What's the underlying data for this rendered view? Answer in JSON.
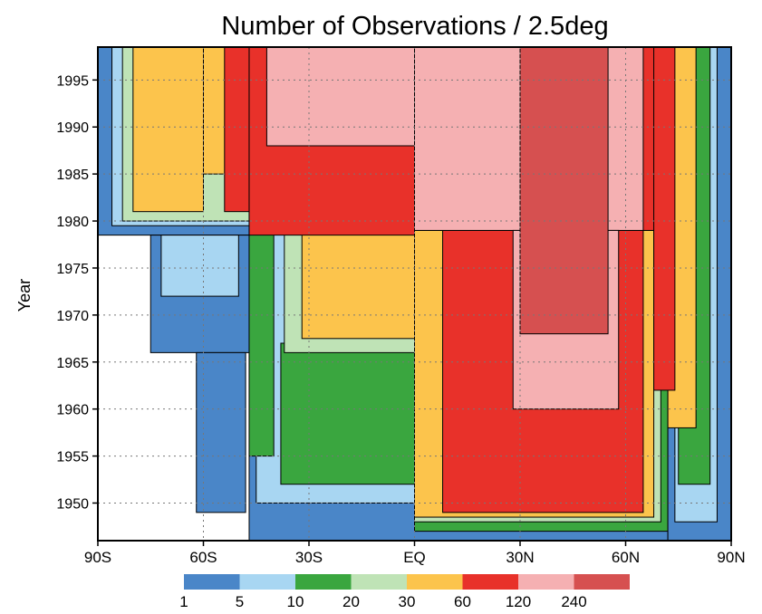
{
  "chart_data": {
    "type": "heatmap",
    "title": "Number of Observations / 2.5deg",
    "xlabel": "",
    "ylabel": "Year",
    "xlim": [
      -90,
      90
    ],
    "ylim": [
      1946,
      1998.5
    ],
    "grid": true,
    "x_ticks": [
      {
        "value": -90,
        "label": "90S"
      },
      {
        "value": -60,
        "label": "60S"
      },
      {
        "value": -30,
        "label": "30S"
      },
      {
        "value": 0,
        "label": "EQ"
      },
      {
        "value": 30,
        "label": "30N"
      },
      {
        "value": 60,
        "label": "60N"
      },
      {
        "value": 90,
        "label": "90N"
      }
    ],
    "y_ticks": [
      {
        "value": 1950,
        "label": "1950"
      },
      {
        "value": 1955,
        "label": "1955"
      },
      {
        "value": 1960,
        "label": "1960"
      },
      {
        "value": 1965,
        "label": "1965"
      },
      {
        "value": 1970,
        "label": "1970"
      },
      {
        "value": 1975,
        "label": "1975"
      },
      {
        "value": 1980,
        "label": "1980"
      },
      {
        "value": 1985,
        "label": "1985"
      },
      {
        "value": 1990,
        "label": "1990"
      },
      {
        "value": 1995,
        "label": "1995"
      }
    ],
    "colorbar": {
      "boundaries": [
        1,
        5,
        10,
        20,
        30,
        60,
        120,
        240
      ],
      "labels": [
        "1",
        "5",
        "10",
        "20",
        "30",
        "60",
        "120",
        "240"
      ],
      "colors": [
        "#4a86c8",
        "#a8d6f2",
        "#3aa63f",
        "#bfe3b6",
        "#fcc44c",
        "#e8312a",
        "#f5b0b2",
        "#d65050"
      ]
    },
    "regions": [
      {
        "level": 1,
        "x0": -90,
        "x1": -47,
        "y0": 1978.5,
        "y1": 1998.5
      },
      {
        "level": 2,
        "x0": -86,
        "x1": -47,
        "y0": 1979.5,
        "y1": 1998.5
      },
      {
        "level": 4,
        "x0": -83,
        "x1": -47,
        "y0": 1980,
        "y1": 1998.5
      },
      {
        "level": 5,
        "x0": -80,
        "x1": -60,
        "y0": 1981,
        "y1": 1998.5
      },
      {
        "level": 5,
        "x0": -60,
        "x1": -50,
        "y0": 1985,
        "y1": 1998.5
      },
      {
        "level": 6,
        "x0": -54,
        "x1": -47,
        "y0": 1981,
        "y1": 1998.5
      },
      {
        "level": 1,
        "x0": -75,
        "x1": -47,
        "y0": 1966,
        "y1": 1978.5
      },
      {
        "level": 2,
        "x0": -72,
        "x1": -50,
        "y0": 1972,
        "y1": 1978.5
      },
      {
        "level": 1,
        "x0": -62,
        "x1": -48,
        "y0": 1949,
        "y1": 1966
      },
      {
        "level": 1,
        "x0": -47,
        "x1": 72,
        "y0": 1946,
        "y1": 1998.5
      },
      {
        "level": 2,
        "x0": -45,
        "x1": 0,
        "y0": 1950,
        "y1": 1979
      },
      {
        "level": 3,
        "x0": -47,
        "x1": -40,
        "y0": 1955,
        "y1": 1979
      },
      {
        "level": 3,
        "x0": -38,
        "x1": 0,
        "y0": 1952,
        "y1": 1967
      },
      {
        "level": 4,
        "x0": -37,
        "x1": 0,
        "y0": 1966,
        "y1": 1979
      },
      {
        "level": 5,
        "x0": -32,
        "x1": 0,
        "y0": 1967.5,
        "y1": 1979
      },
      {
        "level": 6,
        "x0": -47,
        "x1": 0,
        "y0": 1978.5,
        "y1": 1998.5
      },
      {
        "level": 7,
        "x0": -42,
        "x1": 0,
        "y0": 1988,
        "y1": 1998.5
      },
      {
        "level": 3,
        "x0": 0,
        "x1": 72,
        "y0": 1947,
        "y1": 1979
      },
      {
        "level": 4,
        "x0": 0,
        "x1": 70,
        "y0": 1948,
        "y1": 1979
      },
      {
        "level": 5,
        "x0": 0,
        "x1": 68,
        "y0": 1948.5,
        "y1": 1979
      },
      {
        "level": 6,
        "x0": 8,
        "x1": 65,
        "y0": 1949,
        "y1": 1979
      },
      {
        "level": 6,
        "x0": 0,
        "x1": 72,
        "y0": 1979,
        "y1": 1998.5
      },
      {
        "level": 7,
        "x0": 0,
        "x1": 65,
        "y0": 1979,
        "y1": 1998.5
      },
      {
        "level": 7,
        "x0": 28,
        "x1": 58,
        "y0": 1960,
        "y1": 1979
      },
      {
        "level": 8,
        "x0": 30,
        "x1": 55,
        "y0": 1968,
        "y1": 1998.5
      },
      {
        "level": 1,
        "x0": 72,
        "x1": 90,
        "y0": 1946,
        "y1": 1998.5
      },
      {
        "level": 2,
        "x0": 74,
        "x1": 86,
        "y0": 1948,
        "y1": 1998.5
      },
      {
        "level": 3,
        "x0": 75,
        "x1": 84,
        "y0": 1952,
        "y1": 1998.5
      },
      {
        "level": 5,
        "x0": 72,
        "x1": 80,
        "y0": 1958,
        "y1": 1998.5
      },
      {
        "level": 6,
        "x0": 68,
        "x1": 74,
        "y0": 1962,
        "y1": 1998.5
      }
    ]
  }
}
